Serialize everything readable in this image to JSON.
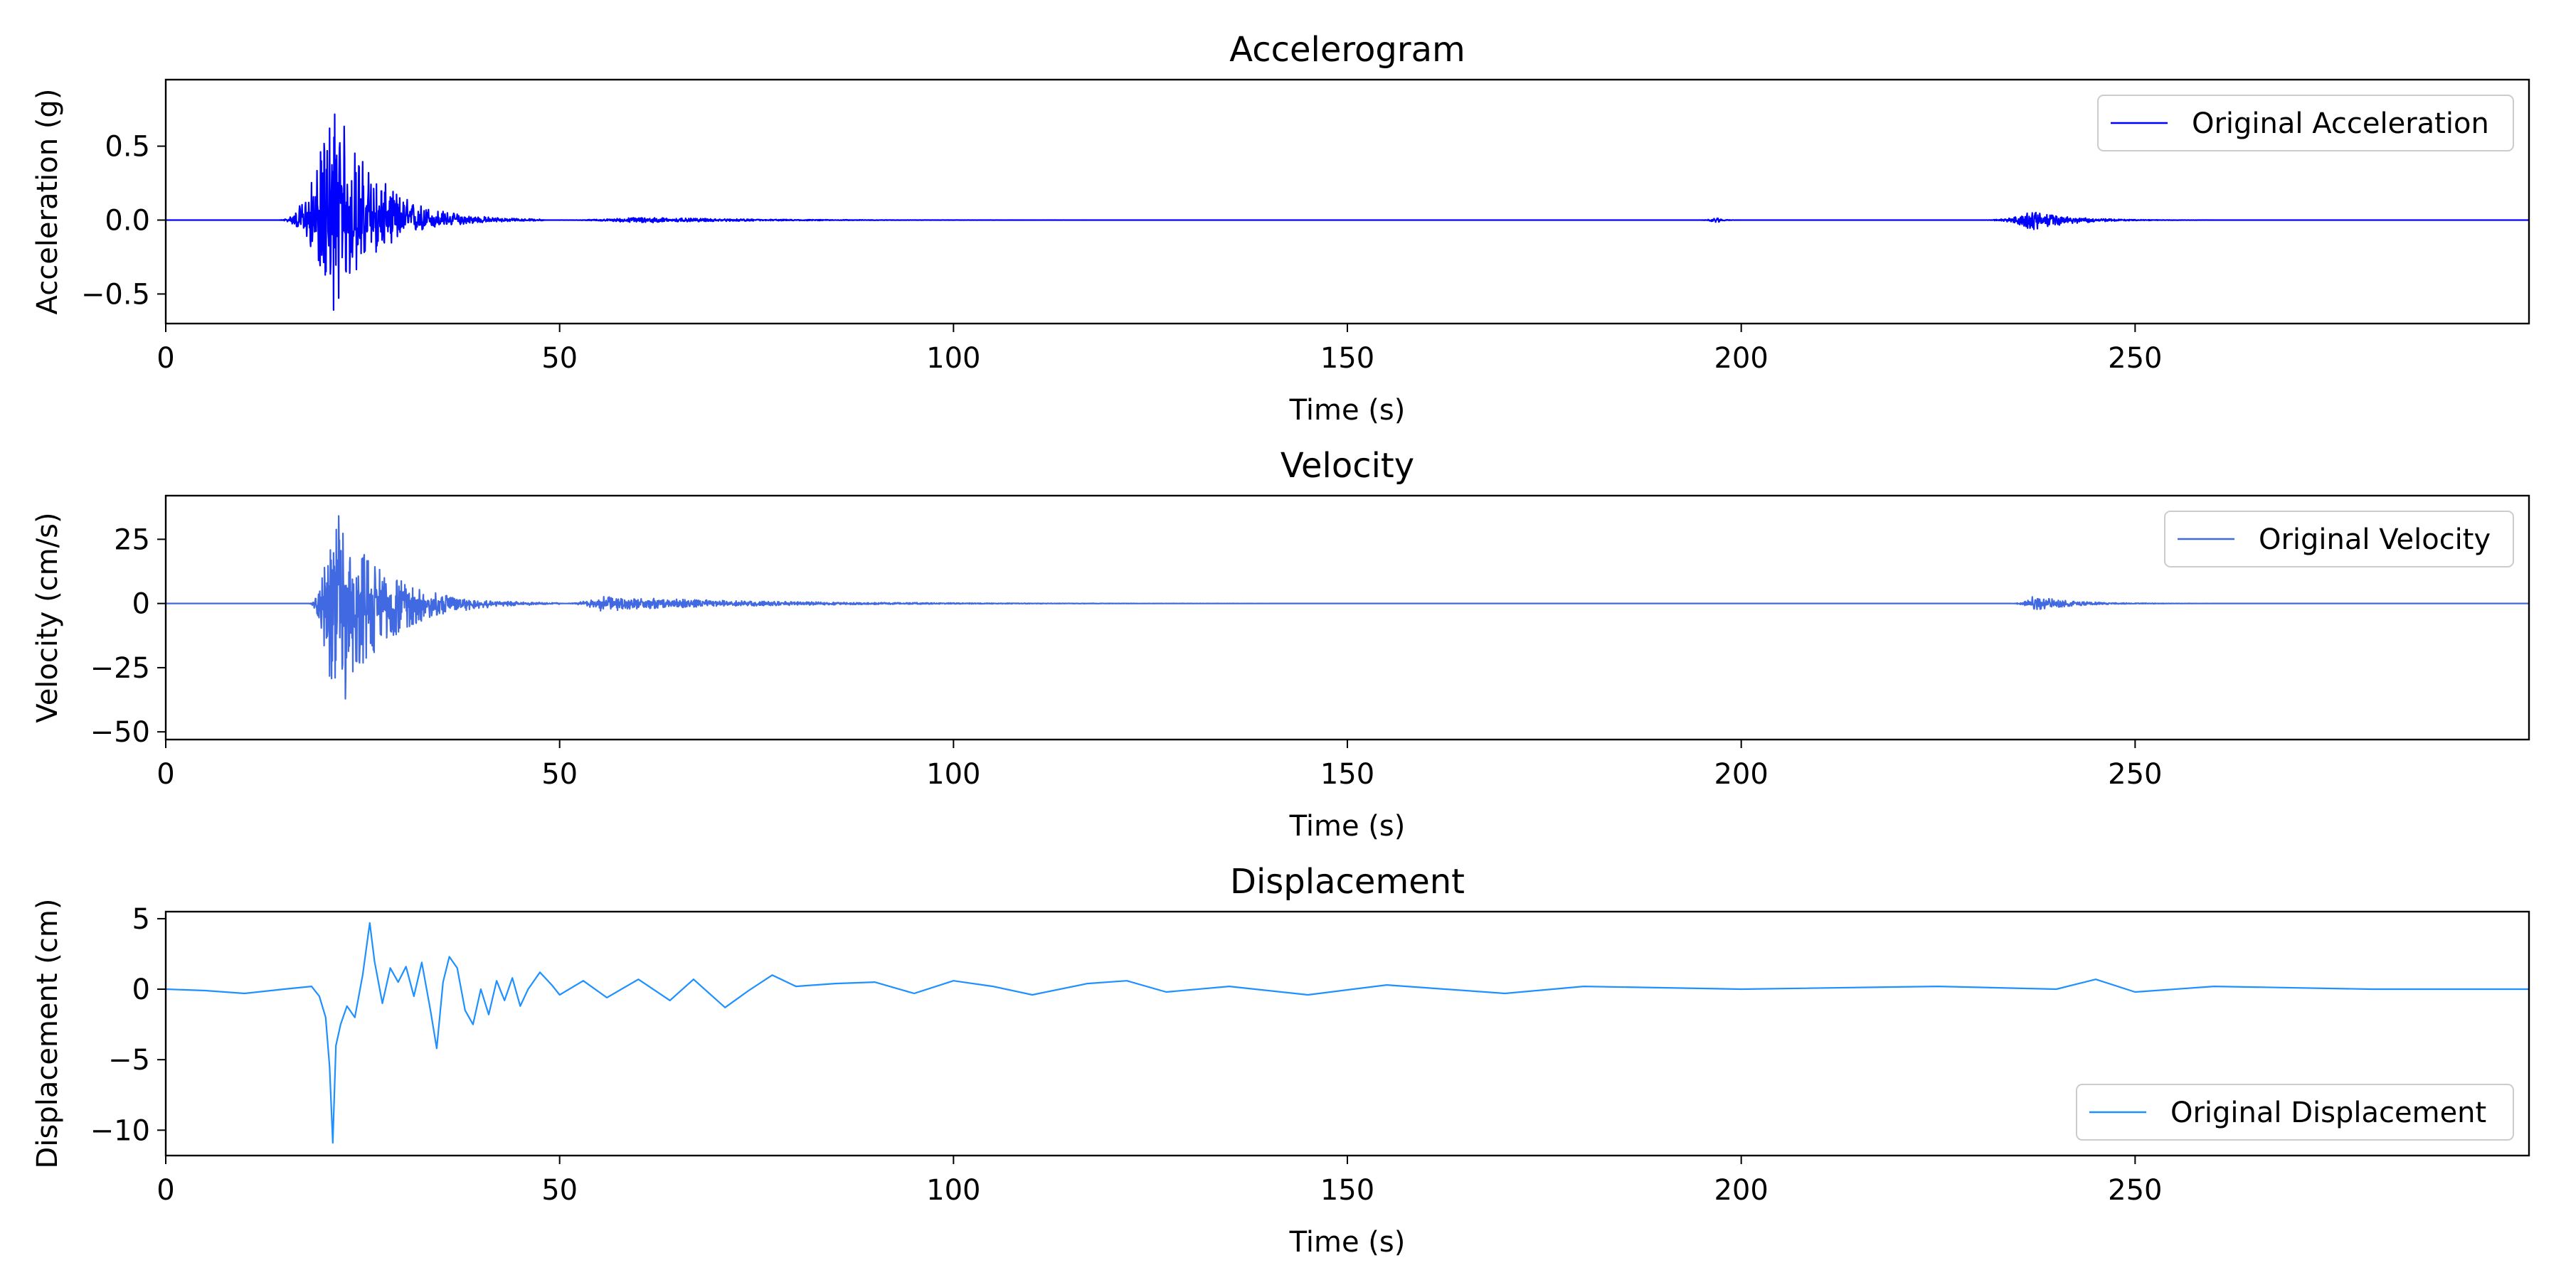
{
  "chart_data": [
    {
      "type": "line",
      "title": "Accelerogram",
      "xlabel": "Time (s)",
      "ylabel": "Acceleration (g)",
      "xlim": [
        0,
        300
      ],
      "ylim": [
        -0.7,
        0.95
      ],
      "xticks": [
        0,
        50,
        100,
        150,
        200,
        250
      ],
      "yticks": [
        -0.5,
        0.0,
        0.5
      ],
      "ytick_labels": [
        "−0.5",
        "0.0",
        "0.5"
      ],
      "grid": false,
      "legend_position": "top-right",
      "series": [
        {
          "name": "Original Acceleration",
          "color": "#0000ff",
          "bursts": [
            {
              "start": 14,
              "peak": 21.2,
              "end": 48,
              "amp_pos": 0.86,
              "amp_neg": -0.63
            },
            {
              "start": 48,
              "peak": 60,
              "end": 120,
              "amp_pos": 0.02,
              "amp_neg": -0.02
            },
            {
              "start": 194,
              "peak": 197,
              "end": 200,
              "amp_pos": 0.02,
              "amp_neg": -0.02
            },
            {
              "start": 230,
              "peak": 237,
              "end": 260,
              "amp_pos": 0.06,
              "amp_neg": -0.07
            }
          ]
        }
      ]
    },
    {
      "type": "line",
      "title": "Velocity",
      "xlabel": "Time (s)",
      "ylabel": "Velocity (cm/s)",
      "xlim": [
        0,
        300
      ],
      "ylim": [
        -53,
        42
      ],
      "xticks": [
        0,
        50,
        100,
        150,
        200,
        250
      ],
      "yticks": [
        -50,
        -25,
        0,
        25
      ],
      "ytick_labels": [
        "−50",
        "−25",
        "0",
        "25"
      ],
      "grid": false,
      "legend_position": "top-right",
      "series": [
        {
          "name": "Original Velocity",
          "color": "#4169e1",
          "bursts": [
            {
              "start": 18,
              "peak": 21.2,
              "end": 50,
              "amp_pos": 40,
              "amp_neg": -50
            },
            {
              "start": 50,
              "peak": 55,
              "end": 140,
              "amp_pos": 3,
              "amp_neg": -3
            },
            {
              "start": 234,
              "peak": 237,
              "end": 260,
              "amp_pos": 3,
              "amp_neg": -3
            }
          ]
        }
      ]
    },
    {
      "type": "line",
      "title": "Displacement",
      "xlabel": "Time (s)",
      "ylabel": "Displacement (cm)",
      "xlim": [
        0,
        300
      ],
      "ylim": [
        -11.8,
        5.5
      ],
      "xticks": [
        0,
        50,
        100,
        150,
        200,
        250
      ],
      "yticks": [
        -10,
        -5,
        0,
        5
      ],
      "ytick_labels": [
        "−10",
        "−5",
        "0",
        "5"
      ],
      "grid": false,
      "legend_position": "bottom-right",
      "series": [
        {
          "name": "Original Displacement",
          "color": "#1e90ff",
          "keypoints": [
            [
              0,
              0
            ],
            [
              5,
              -0.1
            ],
            [
              10,
              -0.3
            ],
            [
              15,
              0
            ],
            [
              18.5,
              0.2
            ],
            [
              19.5,
              -0.5
            ],
            [
              20.3,
              -2
            ],
            [
              20.8,
              -5.5
            ],
            [
              21.2,
              -10.9
            ],
            [
              21.6,
              -4
            ],
            [
              22.2,
              -2.5
            ],
            [
              23,
              -1.2
            ],
            [
              24,
              -2
            ],
            [
              25,
              1
            ],
            [
              25.9,
              4.7
            ],
            [
              26.5,
              2
            ],
            [
              27.5,
              -1
            ],
            [
              28.5,
              1.5
            ],
            [
              29.5,
              0.5
            ],
            [
              30.5,
              1.6
            ],
            [
              31.5,
              -0.5
            ],
            [
              32.5,
              1.9
            ],
            [
              33.6,
              -1.5
            ],
            [
              34.4,
              -4.2
            ],
            [
              35.2,
              0.5
            ],
            [
              36,
              2.3
            ],
            [
              37,
              1.5
            ],
            [
              38,
              -1.5
            ],
            [
              39,
              -2.5
            ],
            [
              40,
              0
            ],
            [
              41,
              -1.8
            ],
            [
              42,
              0.6
            ],
            [
              43,
              -0.8
            ],
            [
              44,
              0.8
            ],
            [
              45,
              -1.2
            ],
            [
              46,
              0
            ],
            [
              47.5,
              1.2
            ],
            [
              49,
              0.3
            ],
            [
              50,
              -0.4
            ],
            [
              53,
              0.6
            ],
            [
              56,
              -0.6
            ],
            [
              60,
              0.7
            ],
            [
              64,
              -0.8
            ],
            [
              67,
              0.7
            ],
            [
              71,
              -1.3
            ],
            [
              74,
              -0.1
            ],
            [
              77,
              1.0
            ],
            [
              80,
              0.2
            ],
            [
              85,
              0.4
            ],
            [
              90,
              0.5
            ],
            [
              95,
              -0.3
            ],
            [
              100,
              0.6
            ],
            [
              105,
              0.2
            ],
            [
              110,
              -0.4
            ],
            [
              117,
              0.4
            ],
            [
              122,
              0.6
            ],
            [
              127,
              -0.2
            ],
            [
              135,
              0.2
            ],
            [
              145,
              -0.4
            ],
            [
              155,
              0.3
            ],
            [
              170,
              -0.3
            ],
            [
              180,
              0.2
            ],
            [
              200,
              0
            ],
            [
              225,
              0.2
            ],
            [
              240,
              0
            ],
            [
              245,
              0.7
            ],
            [
              250,
              -0.2
            ],
            [
              260,
              0.2
            ],
            [
              280,
              0
            ],
            [
              300,
              0
            ]
          ]
        }
      ]
    }
  ]
}
